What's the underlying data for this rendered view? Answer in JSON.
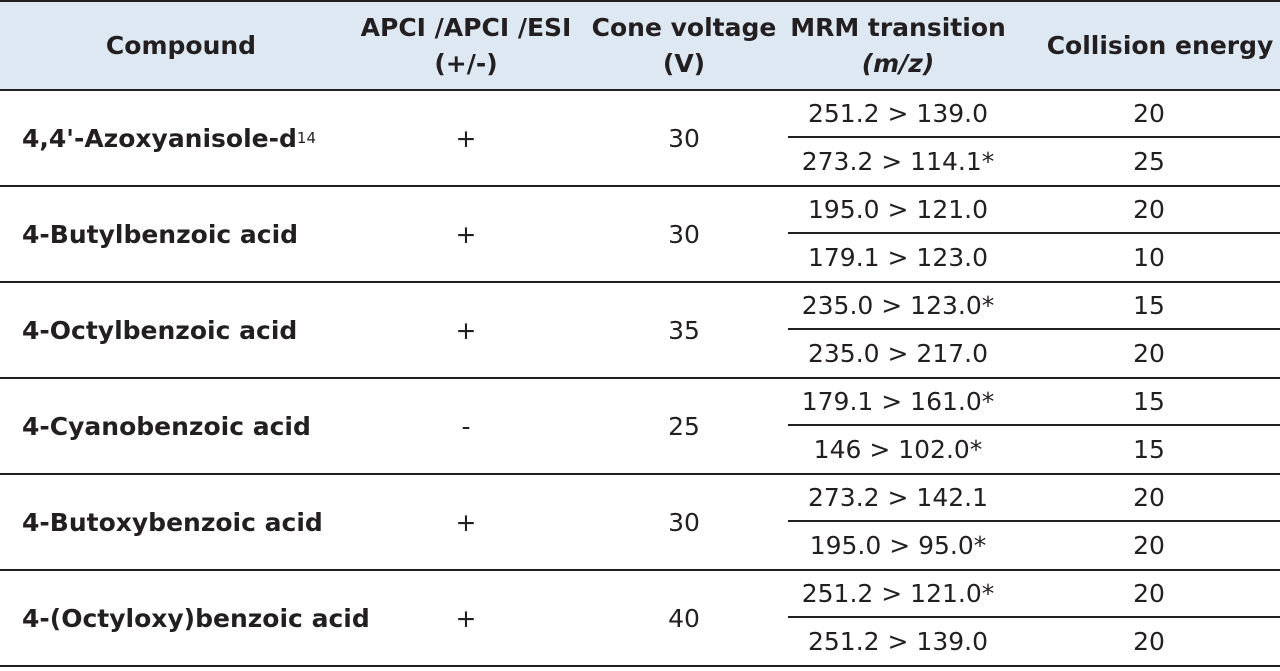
{
  "header": {
    "compound": "Compound",
    "mode_line1": "APCI /APCI /ESI",
    "mode_line2": "(+/-)",
    "cone_line1": "Cone voltage",
    "cone_line2": "(V)",
    "mrm_line1": "MRM transition",
    "mrm_line2": "(m/z)",
    "collision": "Collision energy"
  },
  "rows": [
    {
      "compound": "4,4'-Azoxyanisole-d",
      "compound_sub": "14",
      "mode": "+",
      "cone": "30",
      "transitions": [
        {
          "mrm": "251.2 > 139.0",
          "energy": "20"
        },
        {
          "mrm": "273.2 > 114.1*",
          "energy": "25"
        }
      ]
    },
    {
      "compound": "4-Butylbenzoic acid",
      "mode": "+",
      "cone": "30",
      "transitions": [
        {
          "mrm": "195.0 > 121.0",
          "energy": "20"
        },
        {
          "mrm": "179.1 > 123.0",
          "energy": "10"
        }
      ]
    },
    {
      "compound": "4-Octylbenzoic acid",
      "mode": "+",
      "cone": "35",
      "transitions": [
        {
          "mrm": "235.0 > 123.0*",
          "energy": "15"
        },
        {
          "mrm": "235.0 > 217.0",
          "energy": "20"
        }
      ]
    },
    {
      "compound": "4-Cyanobenzoic acid",
      "mode": "-",
      "cone": "25",
      "transitions": [
        {
          "mrm": "179.1 > 161.0*",
          "energy": "15"
        },
        {
          "mrm": "146 > 102.0*",
          "energy": "15"
        }
      ]
    },
    {
      "compound": "4-Butoxybenzoic acid",
      "mode": "+",
      "cone": "30",
      "transitions": [
        {
          "mrm": "273.2 > 142.1",
          "energy": "20"
        },
        {
          "mrm": "195.0 > 95.0*",
          "energy": "20"
        }
      ]
    },
    {
      "compound": "4-(Octyloxy)benzoic acid",
      "mode": "+",
      "cone": "40",
      "transitions": [
        {
          "mrm": "251.2 > 121.0*",
          "energy": "20"
        },
        {
          "mrm": "251.2 > 139.0",
          "energy": "20"
        }
      ]
    }
  ]
}
